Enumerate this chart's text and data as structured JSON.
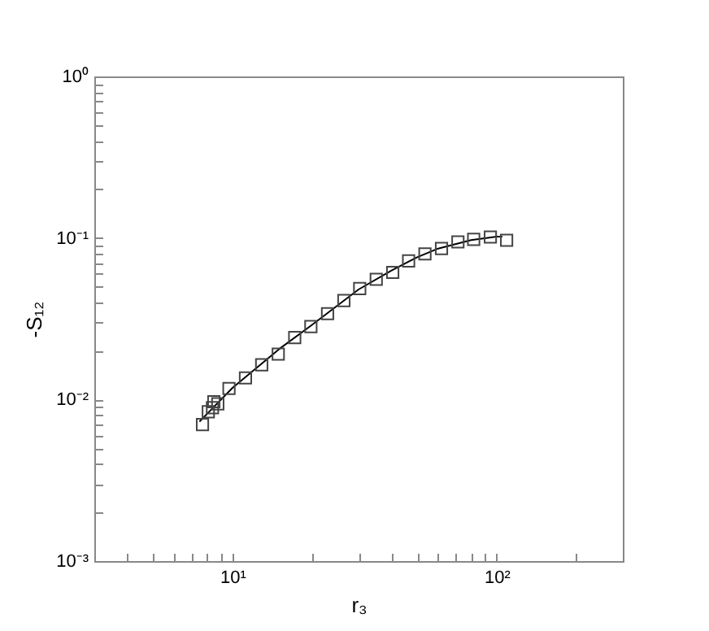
{
  "chart_data": {
    "type": "scatter",
    "xlabel": "r₃",
    "ylabel": "-S₁₂",
    "log": "xy",
    "grid": false,
    "xlim": [
      3,
      300
    ],
    "ylim": [
      0.001,
      1
    ],
    "xticks": [
      {
        "value": 3,
        "label": null
      },
      {
        "value": 4,
        "label": null
      },
      {
        "value": 5,
        "label": null
      },
      {
        "value": 6,
        "label": null
      },
      {
        "value": 7,
        "label": null
      },
      {
        "value": 8,
        "label": null
      },
      {
        "value": 9,
        "label": null
      },
      {
        "value": 10,
        "label": "10¹"
      },
      {
        "value": 20,
        "label": null
      },
      {
        "value": 30,
        "label": null
      },
      {
        "value": 40,
        "label": null
      },
      {
        "value": 50,
        "label": null
      },
      {
        "value": 60,
        "label": null
      },
      {
        "value": 70,
        "label": null
      },
      {
        "value": 80,
        "label": null
      },
      {
        "value": 90,
        "label": null
      },
      {
        "value": 100,
        "label": "10²"
      },
      {
        "value": 200,
        "label": null
      }
    ],
    "yticks": [
      {
        "value": 0.001,
        "label": "10⁻³"
      },
      {
        "value": 0.002,
        "label": null
      },
      {
        "value": 0.003,
        "label": null
      },
      {
        "value": 0.004,
        "label": null
      },
      {
        "value": 0.005,
        "label": null
      },
      {
        "value": 0.006,
        "label": null
      },
      {
        "value": 0.007,
        "label": null
      },
      {
        "value": 0.008,
        "label": null
      },
      {
        "value": 0.009,
        "label": null
      },
      {
        "value": 0.01,
        "label": "10⁻²"
      },
      {
        "value": 0.02,
        "label": null
      },
      {
        "value": 0.03,
        "label": null
      },
      {
        "value": 0.04,
        "label": null
      },
      {
        "value": 0.05,
        "label": null
      },
      {
        "value": 0.06,
        "label": null
      },
      {
        "value": 0.07,
        "label": null
      },
      {
        "value": 0.08,
        "label": null
      },
      {
        "value": 0.09,
        "label": null
      },
      {
        "value": 0.1,
        "label": "10⁻¹"
      },
      {
        "value": 0.2,
        "label": null
      },
      {
        "value": 0.3,
        "label": null
      },
      {
        "value": 0.4,
        "label": null
      },
      {
        "value": 0.5,
        "label": null
      },
      {
        "value": 0.6,
        "label": null
      },
      {
        "value": 0.7,
        "label": null
      },
      {
        "value": 0.8,
        "label": null
      },
      {
        "value": 0.9,
        "label": null
      },
      {
        "value": 1,
        "label": "10⁰"
      }
    ],
    "series": [
      {
        "type": "line",
        "color": "#000000",
        "x": [
          7.5,
          10,
          15,
          20,
          30,
          40,
          50,
          60,
          80,
          100,
          105
        ],
        "values": [
          0.0073,
          0.0118,
          0.0205,
          0.029,
          0.048,
          0.063,
          0.076,
          0.086,
          0.097,
          0.102,
          0.102
        ]
      },
      {
        "marker": "square",
        "color": "#444444",
        "x": [
          7.7,
          8.1,
          8.4,
          8.5,
          8.8,
          9.7,
          11.2,
          12.9,
          14.9,
          17.2,
          19.8,
          22.9,
          26.4,
          30.3,
          35,
          40.4,
          46.4,
          53.5,
          61.8,
          71.3,
          81.8,
          94.6,
          109
        ],
        "values": [
          0.007,
          0.0084,
          0.0089,
          0.0097,
          0.0094,
          0.0117,
          0.0136,
          0.0164,
          0.0191,
          0.0242,
          0.0283,
          0.034,
          0.041,
          0.0486,
          0.0555,
          0.0612,
          0.0721,
          0.0797,
          0.086,
          0.0945,
          0.098,
          0.1014,
          0.0968
        ]
      }
    ]
  }
}
